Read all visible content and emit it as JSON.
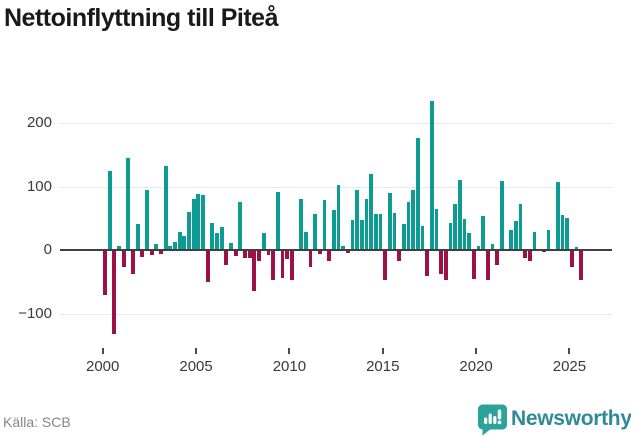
{
  "title": "Nettoinflyttning till Piteå",
  "source": "Källa: SCB",
  "logo": {
    "text": "Newsworthy"
  },
  "colors": {
    "positive_bar": "#0c9c94",
    "negative_bar": "#9c1148",
    "grid": "#e9e9e9",
    "zero_axis": "#3f3f3f",
    "title_text": "#191919",
    "tick_text": "#3a3a3a",
    "source_text": "#85858f",
    "logo_teal": "#2f8a96",
    "logo_icon": "#2ba39a"
  },
  "chart_data": {
    "type": "bar",
    "title": "Nettoinflyttning till Piteå",
    "xlabel": "",
    "ylabel": "",
    "frequency": "quarterly",
    "start_year": 2000,
    "start_quarter": 1,
    "x_ticks": [
      2000,
      2005,
      2010,
      2015,
      2020,
      2025
    ],
    "y_ticks": [
      -100,
      0,
      100,
      200
    ],
    "y_tick_labels": [
      "−100",
      "0",
      "100",
      "200"
    ],
    "ylim": [
      -150,
      252
    ],
    "grid": true,
    "legend": false,
    "values": [
      -71,
      125,
      -132,
      6,
      -27,
      145,
      -37,
      41,
      -11,
      95,
      -8,
      9,
      -6,
      133,
      7,
      12,
      29,
      22,
      60,
      80,
      88,
      87,
      -51,
      43,
      26,
      37,
      -23,
      11,
      -10,
      75,
      -12,
      -13,
      -65,
      -17,
      27,
      -8,
      -48,
      92,
      -44,
      -14,
      -47,
      0,
      81,
      28,
      -26,
      57,
      -7,
      79,
      -18,
      63,
      103,
      7,
      -4,
      47,
      94,
      47,
      80,
      119,
      57,
      56,
      -48,
      89,
      59,
      -18,
      41,
      75,
      94,
      176,
      38,
      -41,
      235,
      64,
      -37,
      -48,
      42,
      72,
      110,
      49,
      26,
      -45,
      6,
      54,
      -48,
      9,
      -23,
      108,
      0,
      31,
      45,
      73,
      -13,
      -18,
      28,
      0,
      -3,
      32,
      0,
      107,
      55,
      50,
      -27,
      5,
      -48
    ]
  }
}
